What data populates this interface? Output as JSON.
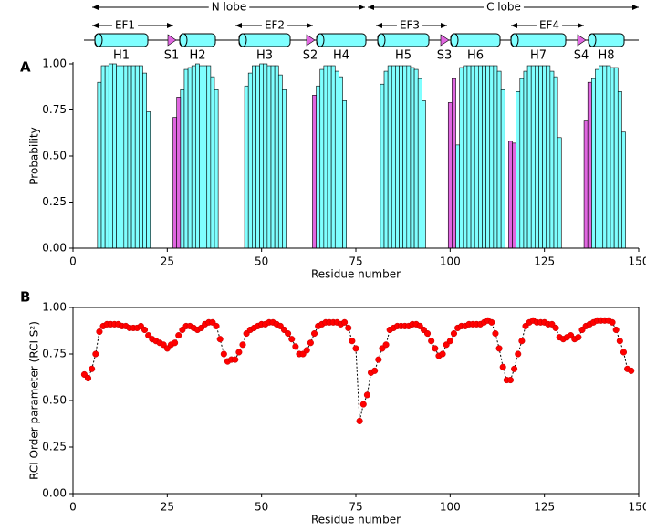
{
  "chart_data": [
    {
      "type": "bar",
      "panel": "A",
      "structure": {
        "lobes": [
          "N lobe",
          "C lobe"
        ],
        "ef_hands": [
          "EF1",
          "EF2",
          "EF3",
          "EF4"
        ],
        "helices": [
          "H1",
          "H2",
          "H3",
          "H4",
          "H5",
          "H6",
          "H7",
          "H8"
        ],
        "strands": [
          "S1",
          "S2",
          "S3",
          "S4"
        ]
      },
      "x_label": "Residue number",
      "y_label": "Probability",
      "xlim": [
        0,
        150
      ],
      "ylim": [
        0,
        1
      ],
      "xticks": [
        0,
        25,
        50,
        75,
        100,
        125,
        150
      ],
      "yticks": [
        {
          "value": 0,
          "label": "0.00"
        },
        {
          "value": 0.25,
          "label": "0.25"
        },
        {
          "value": 0.5,
          "label": "0.50"
        },
        {
          "value": 0.75,
          "label": "0.75"
        },
        {
          "value": 1,
          "label": "1.00"
        }
      ],
      "series": [
        {
          "color": "#7fffff",
          "x": [
            7,
            8,
            9,
            10,
            11,
            12,
            13,
            14,
            15,
            16,
            17,
            18,
            19,
            20,
            29,
            30,
            31,
            32,
            33,
            34,
            35,
            36,
            37,
            38,
            46,
            47,
            48,
            49,
            50,
            51,
            52,
            53,
            54,
            55,
            56,
            65,
            66,
            67,
            68,
            69,
            70,
            71,
            72,
            82,
            83,
            84,
            85,
            86,
            87,
            88,
            89,
            90,
            91,
            92,
            93,
            102,
            103,
            104,
            105,
            106,
            107,
            108,
            109,
            110,
            111,
            112,
            113,
            114,
            118,
            119,
            120,
            121,
            122,
            123,
            124,
            125,
            126,
            127,
            128,
            129,
            138,
            139,
            140,
            141,
            142,
            143,
            144,
            145,
            146
          ],
          "values": [
            0.9,
            0.99,
            0.99,
            1,
            1,
            0.99,
            0.99,
            0.99,
            0.99,
            0.99,
            0.99,
            0.99,
            0.95,
            0.74,
            0.86,
            0.97,
            0.98,
            0.99,
            1,
            0.99,
            0.99,
            0.99,
            0.93,
            0.86,
            0.88,
            0.95,
            0.99,
            0.99,
            1,
            1,
            0.99,
            0.99,
            0.99,
            0.94,
            0.86,
            0.88,
            0.97,
            0.99,
            0.99,
            0.99,
            0.96,
            0.93,
            0.8,
            0.89,
            0.96,
            0.99,
            0.99,
            0.99,
            0.99,
            0.99,
            0.99,
            0.98,
            0.97,
            0.92,
            0.8,
            0.56,
            0.98,
            0.99,
            0.99,
            0.99,
            0.99,
            0.99,
            0.99,
            0.99,
            0.99,
            0.99,
            0.96,
            0.86,
            0.85,
            0.92,
            0.96,
            0.99,
            0.99,
            0.99,
            0.99,
            0.99,
            0.99,
            0.96,
            0.93,
            0.6,
            0.92,
            0.97,
            0.99,
            0.99,
            0.99,
            0.98,
            0.98,
            0.85,
            0.63
          ]
        },
        {
          "color": "#e066e0",
          "x": [
            27,
            28,
            64,
            100,
            101,
            116,
            117,
            136,
            137
          ],
          "values": [
            0.71,
            0.82,
            0.83,
            0.79,
            0.92,
            0.58,
            0.57,
            0.69,
            0.9
          ]
        }
      ]
    },
    {
      "type": "line",
      "panel": "B",
      "x_label": "Residue number",
      "y_label": "RCI Order parameter (RCI S²)",
      "xlim": [
        0,
        150
      ],
      "ylim": [
        0,
        1
      ],
      "xticks": [
        0,
        25,
        50,
        75,
        100,
        125,
        150
      ],
      "yticks": [
        {
          "value": 0,
          "label": "0.00"
        },
        {
          "value": 0.25,
          "label": "0.25"
        },
        {
          "value": 0.5,
          "label": "0.50"
        },
        {
          "value": 0.75,
          "label": "0.75"
        },
        {
          "value": 1,
          "label": "1.00"
        }
      ],
      "series": [
        {
          "color": "#ff0000",
          "x": [
            3,
            4,
            5,
            6,
            7,
            8,
            9,
            10,
            11,
            12,
            13,
            14,
            15,
            16,
            17,
            18,
            19,
            20,
            21,
            22,
            23,
            24,
            25,
            26,
            27,
            28,
            29,
            30,
            31,
            32,
            33,
            34,
            35,
            36,
            37,
            38,
            39,
            40,
            41,
            42,
            43,
            44,
            45,
            46,
            47,
            48,
            49,
            50,
            51,
            52,
            53,
            54,
            55,
            56,
            57,
            58,
            59,
            60,
            61,
            62,
            63,
            64,
            65,
            66,
            67,
            68,
            69,
            70,
            71,
            72,
            73,
            74,
            75,
            76,
            77,
            78,
            79,
            80,
            81,
            82,
            83,
            84,
            85,
            86,
            87,
            88,
            89,
            90,
            91,
            92,
            93,
            94,
            95,
            96,
            97,
            98,
            99,
            100,
            101,
            102,
            103,
            104,
            105,
            106,
            107,
            108,
            109,
            110,
            111,
            112,
            113,
            114,
            115,
            116,
            117,
            118,
            119,
            120,
            121,
            122,
            123,
            124,
            125,
            126,
            127,
            128,
            129,
            130,
            131,
            132,
            133,
            134,
            135,
            136,
            137,
            138,
            139,
            140,
            141,
            142,
            143,
            144,
            145,
            146,
            147,
            148
          ],
          "values": [
            0.64,
            0.62,
            0.67,
            0.75,
            0.87,
            0.9,
            0.91,
            0.91,
            0.91,
            0.91,
            0.9,
            0.9,
            0.89,
            0.89,
            0.89,
            0.9,
            0.88,
            0.85,
            0.83,
            0.82,
            0.81,
            0.8,
            0.78,
            0.8,
            0.81,
            0.85,
            0.88,
            0.9,
            0.9,
            0.89,
            0.88,
            0.89,
            0.91,
            0.92,
            0.92,
            0.9,
            0.83,
            0.75,
            0.71,
            0.72,
            0.72,
            0.76,
            0.8,
            0.86,
            0.88,
            0.89,
            0.9,
            0.91,
            0.91,
            0.92,
            0.92,
            0.91,
            0.9,
            0.88,
            0.86,
            0.83,
            0.79,
            0.75,
            0.75,
            0.77,
            0.81,
            0.86,
            0.9,
            0.91,
            0.92,
            0.92,
            0.92,
            0.92,
            0.91,
            0.92,
            0.89,
            0.82,
            0.78,
            0.39,
            0.48,
            0.53,
            0.65,
            0.66,
            0.72,
            0.78,
            0.8,
            0.88,
            0.89,
            0.9,
            0.9,
            0.9,
            0.9,
            0.91,
            0.91,
            0.9,
            0.88,
            0.86,
            0.82,
            0.78,
            0.74,
            0.75,
            0.8,
            0.82,
            0.86,
            0.89,
            0.9,
            0.9,
            0.91,
            0.91,
            0.91,
            0.91,
            0.92,
            0.93,
            0.92,
            0.86,
            0.78,
            0.68,
            0.61,
            0.61,
            0.67,
            0.75,
            0.82,
            0.9,
            0.92,
            0.93,
            0.92,
            0.92,
            0.92,
            0.91,
            0.91,
            0.89,
            0.84,
            0.83,
            0.84,
            0.85,
            0.83,
            0.84,
            0.88,
            0.9,
            0.91,
            0.92,
            0.93,
            0.93,
            0.93,
            0.93,
            0.92,
            0.88,
            0.82,
            0.76,
            0.67,
            0.66
          ]
        }
      ]
    }
  ]
}
